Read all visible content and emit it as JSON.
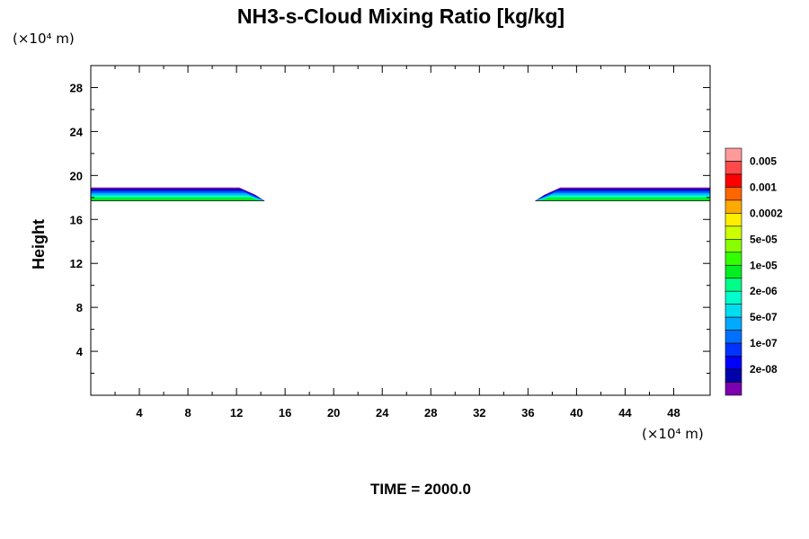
{
  "chart_data": {
    "type": "heatmap",
    "title": "NH3-s-Cloud Mixing Ratio [kg/kg]",
    "xlabel": "",
    "ylabel": "Height",
    "x_unit": "(×10⁴ m)",
    "y_unit": "(×10⁴ m)",
    "x_ticks": [
      4,
      8,
      12,
      16,
      20,
      24,
      28,
      32,
      36,
      40,
      44,
      48
    ],
    "y_ticks": [
      4,
      8,
      12,
      16,
      20,
      24,
      28
    ],
    "xlim": [
      0,
      51
    ],
    "ylim": [
      0,
      30
    ],
    "time_label": "TIME = 2000.0",
    "colorbar": {
      "labels": [
        "0.005",
        "0.001",
        "0.0002",
        "5e-05",
        "1e-05",
        "2e-06",
        "5e-07",
        "1e-07",
        "2e-08"
      ],
      "colors": [
        "#ff9a9a",
        "#ff4a4a",
        "#ff0000",
        "#ff6600",
        "#ffaa00",
        "#ffee00",
        "#ccff00",
        "#88ff00",
        "#33ff00",
        "#00ee22",
        "#00ff88",
        "#00ffcc",
        "#00ddee",
        "#00aaff",
        "#0070ff",
        "#0033ff",
        "#0000ff",
        "#0000aa",
        "#7a00b0"
      ]
    },
    "cloud_regions": [
      {
        "x_start": 0,
        "x_end": 14.3,
        "y_bottom": 17.7,
        "y_top": 18.9
      },
      {
        "x_start": 36.6,
        "x_end": 51,
        "y_bottom": 17.7,
        "y_top": 18.9
      }
    ]
  }
}
